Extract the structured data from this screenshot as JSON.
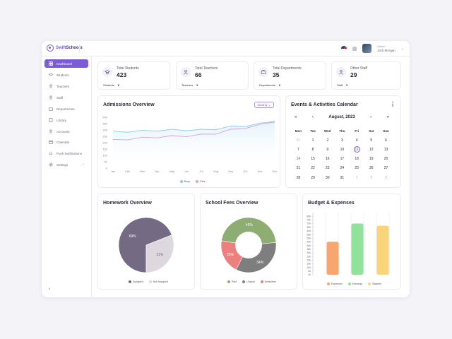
{
  "brand": {
    "name_a": "Swift",
    "name_b": "Schools"
  },
  "user": {
    "role": "Admin",
    "name": "Jack Morgan"
  },
  "sidebar": {
    "items": [
      {
        "label": "Dashboard",
        "icon": "dashboard-icon",
        "active": true
      },
      {
        "label": "Students",
        "icon": "students-icon"
      },
      {
        "label": "Teachers",
        "icon": "teachers-icon"
      },
      {
        "label": "Staff",
        "icon": "staff-icon"
      },
      {
        "label": "Departments",
        "icon": "departments-icon"
      },
      {
        "label": "Library",
        "icon": "library-icon"
      },
      {
        "label": "Accounts",
        "icon": "accounts-icon"
      },
      {
        "label": "Calendar",
        "icon": "calendar-icon"
      },
      {
        "label": "Push Notifications",
        "icon": "bell-icon"
      },
      {
        "label": "Settings",
        "icon": "gear-icon",
        "has_children": true
      }
    ],
    "collapse_glyph": "‹"
  },
  "stats": [
    {
      "label": "Total Students",
      "value": "423",
      "select": "Students"
    },
    {
      "label": "Total Teachers",
      "value": "66",
      "select": "Teachers"
    },
    {
      "label": "Total Departments",
      "value": "35",
      "select": "Departments"
    },
    {
      "label": "Other Staff",
      "value": "29",
      "select": "Staff"
    }
  ],
  "admissions": {
    "title": "Admissions Overview",
    "period": "Monthly ⌄"
  },
  "calendar": {
    "title": "Events & Activities Calendar",
    "month": "August, 2023",
    "weekdays": [
      "Mon",
      "Tue",
      "Wed",
      "Thu",
      "Fri",
      "Sat",
      "Sun"
    ],
    "weeks": [
      [
        "31",
        "1",
        "2",
        "3",
        "4",
        "5",
        "6"
      ],
      [
        "7",
        "8",
        "9",
        "10",
        "11",
        "12",
        "13"
      ],
      [
        "14",
        "15",
        "16",
        "17",
        "18",
        "19",
        "20"
      ],
      [
        "21",
        "22",
        "23",
        "24",
        "25",
        "26",
        "27"
      ],
      [
        "28",
        "29",
        "30",
        "31",
        "1",
        "2",
        "3"
      ]
    ],
    "today": "11",
    "highlight": "14"
  },
  "homework": {
    "title": "Homework Overview"
  },
  "fees": {
    "title": "School Fees Overview"
  },
  "budget": {
    "title": "Budget & Expenses"
  },
  "colors": {
    "accent": "#7c5cd6",
    "boys": "#8fcbe8",
    "girls": "#d7a0e6"
  },
  "chart_data": [
    {
      "type": "line",
      "title": "Admissions Overview",
      "categories": [
        "Jan",
        "Feb",
        "Mar",
        "Apr",
        "May",
        "Jun",
        "Jul",
        "Aug",
        "Sep",
        "Oct",
        "Nov",
        "Dec"
      ],
      "ylim": [
        0,
        400
      ],
      "yticks": [
        "400",
        "350",
        "300",
        "250",
        "200",
        "150",
        "100",
        "50",
        "0"
      ],
      "series": [
        {
          "name": "Boys",
          "color": "#8fcbe8",
          "values": [
            285,
            290,
            292,
            298,
            300,
            302,
            300,
            310,
            325,
            335,
            348,
            375
          ]
        },
        {
          "name": "Girls",
          "color": "#d7a0e6",
          "values": [
            220,
            230,
            238,
            246,
            250,
            255,
            262,
            275,
            300,
            320,
            340,
            370
          ]
        }
      ]
    },
    {
      "type": "pie",
      "title": "Homework Overview",
      "slices": [
        {
          "name": "Assigned",
          "value": 69,
          "label": "69%",
          "color": "#756a84"
        },
        {
          "name": "Not Assigned",
          "value": 31,
          "label": "31%",
          "color": "#dcd8de"
        }
      ]
    },
    {
      "type": "pie",
      "title": "School Fees Overview",
      "donut": true,
      "slices": [
        {
          "name": "Paid",
          "value": 46,
          "label": "46%",
          "color": "#8dad72"
        },
        {
          "name": "Unpaid",
          "value": 34,
          "label": "34%",
          "color": "#7e7e7e"
        },
        {
          "name": "Defaulters",
          "value": 20,
          "label": "20%",
          "color": "#ee7f7f"
        }
      ]
    },
    {
      "type": "bar",
      "title": "Budget & Expenses",
      "categories": [
        "Expenses",
        "Earnings",
        "Salaries"
      ],
      "values": [
        45000,
        70000,
        67000
      ],
      "colors": [
        "#f8a66d",
        "#8fe39a",
        "#f8d47b"
      ],
      "ylim": [
        0,
        85000
      ],
      "yticks": [
        "80k",
        "75k",
        "70k",
        "65k",
        "60k",
        "55k",
        "50k",
        "45k",
        "40k",
        "35k",
        "30k",
        "25k",
        "20k",
        "15k",
        "10k",
        "5k",
        "0k"
      ]
    }
  ]
}
